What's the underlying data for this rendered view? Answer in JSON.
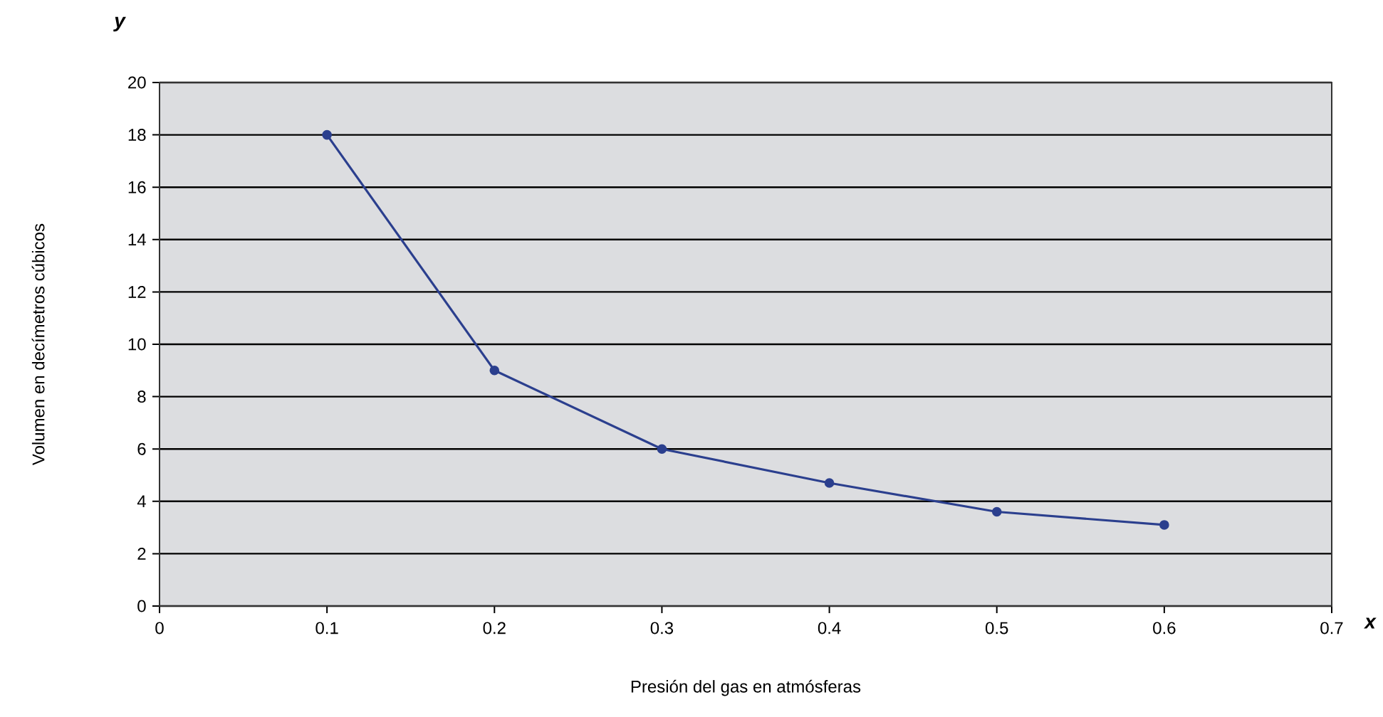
{
  "chart_data": {
    "type": "line",
    "xlabel": "Presión del gas en atmósferas",
    "ylabel": "Volumen en decímetros cúbicos",
    "x": [
      0.1,
      0.2,
      0.3,
      0.4,
      0.5,
      0.6
    ],
    "series": [
      {
        "color": "#2b3f8e",
        "values": [
          18,
          9,
          6,
          4.7,
          3.6,
          3.1
        ]
      }
    ],
    "xlim": [
      0,
      0.7
    ],
    "xticks": [
      0,
      0.1,
      0.2,
      0.3,
      0.4,
      0.5,
      0.6,
      0.7
    ],
    "ylim": [
      0,
      20
    ],
    "yticks": [
      0,
      2,
      4,
      6,
      8,
      10,
      12,
      14,
      16,
      18,
      20
    ],
    "grid": "y",
    "marker": "circle",
    "line_style": "solid",
    "annotations": [
      "*y*",
      "*x*"
    ]
  }
}
